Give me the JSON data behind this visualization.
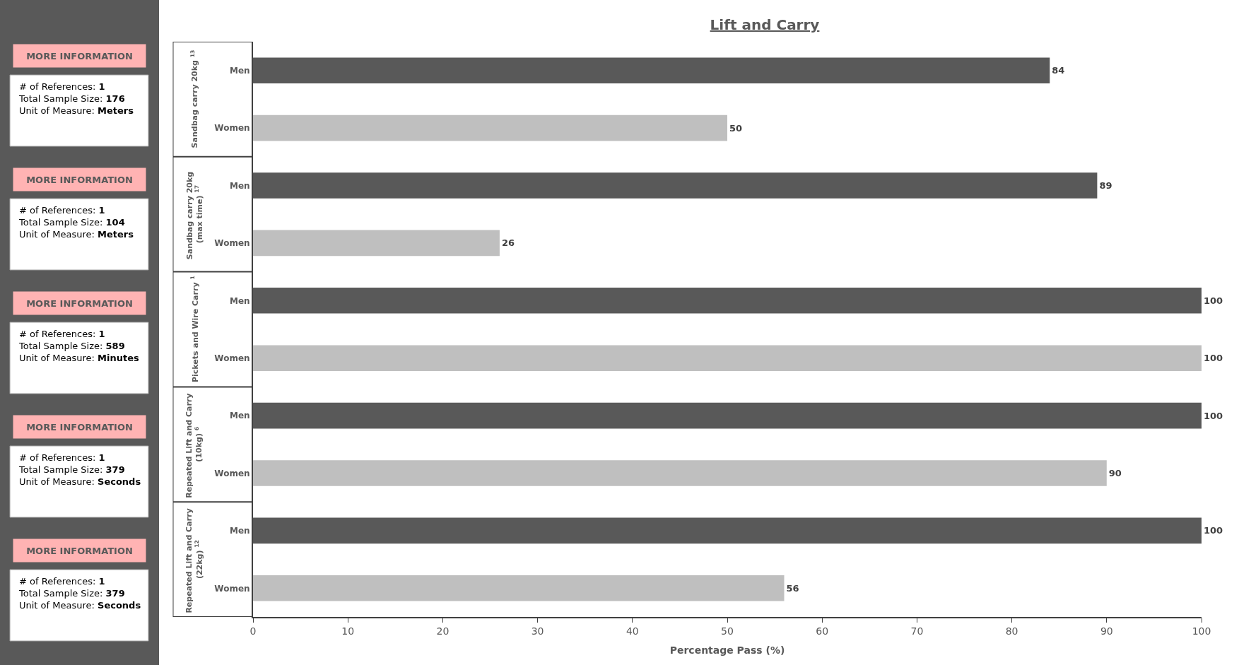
{
  "chart_data": {
    "type": "bar",
    "orientation": "horizontal",
    "title": "Lift and Carry",
    "xlabel": "Percentage Pass (%)",
    "categories": [
      "Men",
      "Women",
      "Men",
      "Women",
      "Men",
      "Women",
      "Men",
      "Women",
      "Men",
      "Women"
    ],
    "values": [
      84,
      50,
      89,
      26,
      100,
      100,
      100,
      90,
      100,
      56
    ],
    "colors": [
      "#595959",
      "#bfbfbf",
      "#595959",
      "#bfbfbf",
      "#595959",
      "#bfbfbf",
      "#595959",
      "#bfbfbf",
      "#595959",
      "#bfbfbf"
    ],
    "data_labels": true,
    "xlim": [
      0,
      100
    ],
    "xticks": [
      0,
      10,
      20,
      30,
      40,
      50,
      60,
      70,
      80,
      90,
      100
    ],
    "legend": false,
    "annotations": [
      "Sandbag carry 20kg $^{13}$",
      "Sandbag carry 20kg (max time) $^{17}$",
      "Pickets and Wire Carry $^{1}$",
      "Repeated Lift and Carry (10kg) $^{6}$",
      "Repeated Lift and Carry (22kg) $^{12}$",
      "MORE INFORMATION",
      "# of References: 1\nTotal Sample Size: 176\nUnit of Measure: Meters",
      "MORE INFORMATION",
      "# of References: 1\nTotal Sample Size: 104\nUnit of Measure: Meters",
      "MORE INFORMATION",
      "# of References: 1\nTotal Sample Size: 589\nUnit of Measure: Minutes",
      "MORE INFORMATION",
      "# of References: 1\nTotal Sample Size: 379\nUnit of Measure: Seconds",
      "MORE INFORMATION",
      "# of References: 1\nTotal Sample Size: 379\nUnit of Measure: Seconds"
    ]
  }
}
